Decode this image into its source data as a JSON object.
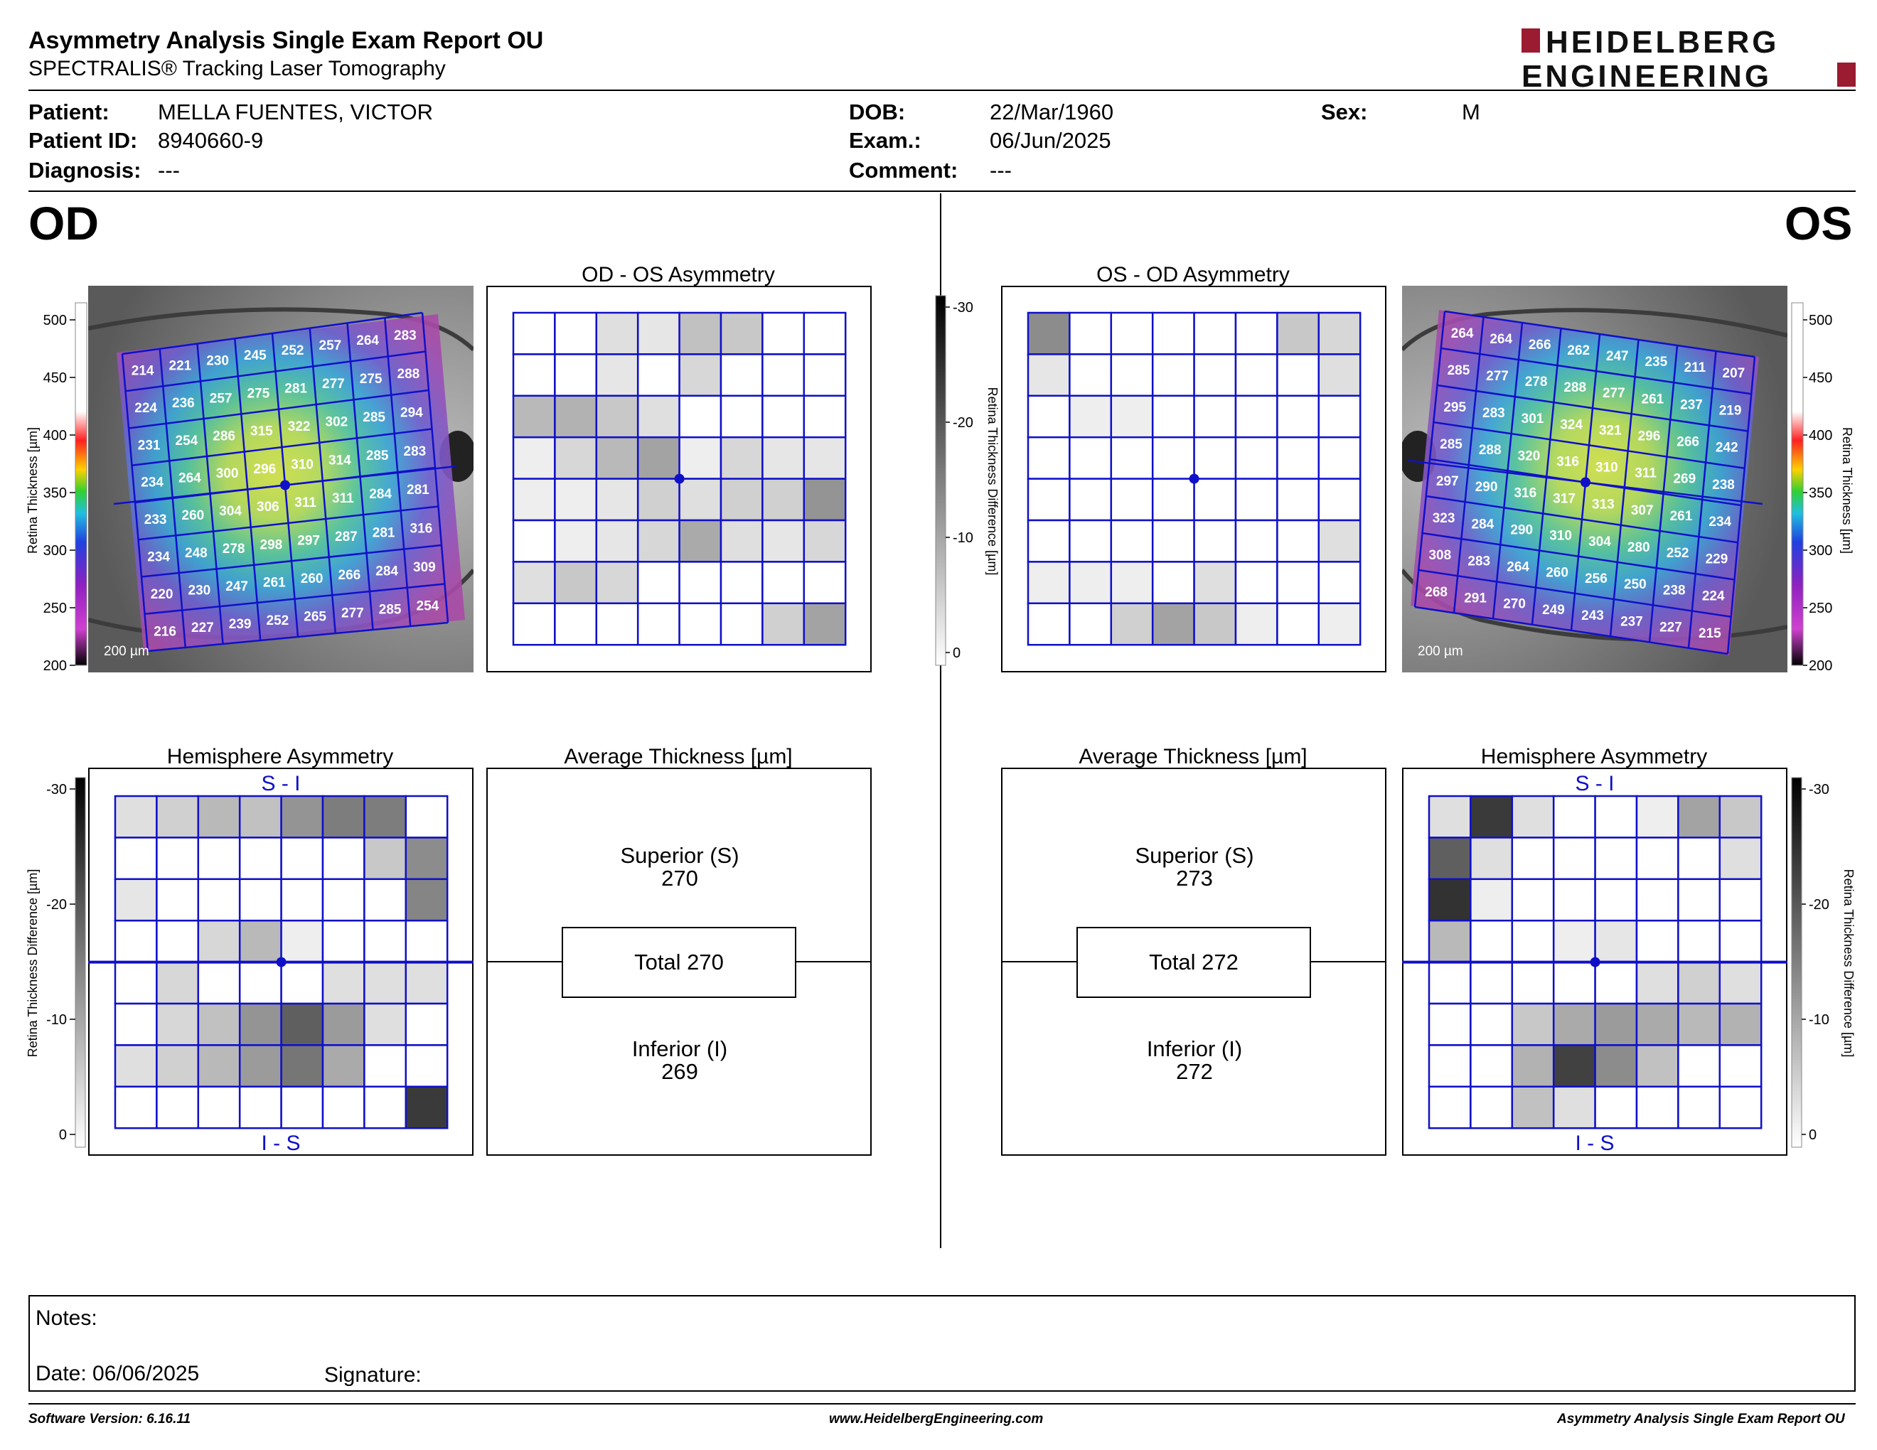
{
  "header": {
    "title": "Asymmetry Analysis Single Exam Report OU",
    "subtitle": "SPECTRALIS® Tracking Laser Tomography",
    "logo_line1": "HEIDELBERG",
    "logo_line2": "ENGINEERING"
  },
  "patient": {
    "patient_label": "Patient:",
    "patient_value": "MELLA FUENTES, VICTOR",
    "id_label": "Patient ID:",
    "id_value": "8940660-9",
    "diagnosis_label": "Diagnosis:",
    "diagnosis_value": "---",
    "dob_label": "DOB:",
    "dob_value": "22/Mar/1960",
    "exam_label": "Exam.:",
    "exam_value": "06/Jun/2025",
    "comment_label": "Comment:",
    "comment_value": "---",
    "sex_label": "Sex:",
    "sex_value": "M"
  },
  "od": {
    "eye_label": "OD",
    "map_scale": "200 µm",
    "thickness_grid": [
      [
        214,
        221,
        230,
        245,
        252,
        257,
        264,
        283
      ],
      [
        224,
        236,
        257,
        275,
        281,
        277,
        275,
        288
      ],
      [
        231,
        254,
        286,
        315,
        322,
        302,
        285,
        294
      ],
      [
        234,
        264,
        300,
        296,
        310,
        314,
        285,
        283
      ],
      [
        233,
        260,
        304,
        306,
        311,
        311,
        284,
        281
      ],
      [
        234,
        248,
        278,
        298,
        297,
        287,
        281,
        316
      ],
      [
        220,
        230,
        247,
        261,
        260,
        266,
        284,
        309
      ],
      [
        216,
        227,
        239,
        252,
        265,
        277,
        285,
        254
      ]
    ],
    "asym_title": "OD - OS Asymmetry",
    "asym_grid": [
      [
        0,
        0,
        3,
        2,
        7,
        6,
        0,
        0
      ],
      [
        0,
        0,
        2,
        0,
        4,
        0,
        0,
        0
      ],
      [
        8,
        9,
        6,
        3,
        0,
        0,
        0,
        0
      ],
      [
        1,
        4,
        8,
        11,
        1,
        4,
        2,
        2
      ],
      [
        1,
        1,
        2,
        5,
        3,
        5,
        5,
        13
      ],
      [
        0,
        1,
        2,
        4,
        10,
        3,
        2,
        4
      ],
      [
        3,
        6,
        4,
        0,
        0,
        0,
        0,
        0
      ],
      [
        0,
        0,
        0,
        0,
        0,
        0,
        5,
        11
      ]
    ],
    "hemi_title": "Hemisphere Asymmetry",
    "hemi_top_label": "S - I",
    "hemi_bottom_label": "I - S",
    "hemi_grid": [
      [
        3,
        5,
        8,
        7,
        13,
        16,
        16,
        0
      ],
      [
        0,
        0,
        0,
        0,
        0,
        0,
        6,
        14
      ],
      [
        2,
        0,
        0,
        0,
        0,
        0,
        0,
        15
      ],
      [
        0,
        0,
        4,
        8,
        1,
        0,
        0,
        0
      ],
      [
        0,
        4,
        0,
        0,
        0,
        3,
        3,
        3
      ],
      [
        0,
        4,
        7,
        13,
        20,
        12,
        3,
        0
      ],
      [
        3,
        5,
        8,
        12,
        17,
        10,
        0,
        0
      ],
      [
        0,
        0,
        0,
        0,
        0,
        0,
        0,
        25
      ]
    ],
    "avg_title": "Average Thickness [µm]",
    "superior_label": "Superior (S)",
    "superior_value": "270",
    "total_label": "Total 270",
    "inferior_label": "Inferior (I)",
    "inferior_value": "269"
  },
  "os": {
    "eye_label": "OS",
    "map_scale": "200 µm",
    "thickness_grid": [
      [
        264,
        264,
        266,
        262,
        247,
        235,
        211,
        207
      ],
      [
        285,
        277,
        278,
        288,
        277,
        261,
        237,
        219
      ],
      [
        295,
        283,
        301,
        324,
        321,
        296,
        266,
        242
      ],
      [
        285,
        288,
        320,
        316,
        310,
        311,
        269,
        238
      ],
      [
        297,
        290,
        316,
        317,
        313,
        307,
        261,
        234
      ],
      [
        323,
        284,
        290,
        310,
        304,
        280,
        252,
        229
      ],
      [
        308,
        283,
        264,
        260,
        256,
        250,
        238,
        224
      ],
      [
        268,
        291,
        270,
        249,
        243,
        237,
        227,
        215
      ]
    ],
    "asym_title": "OS - OD Asymmetry",
    "asym_grid": [
      [
        14,
        0,
        0,
        0,
        0,
        0,
        6,
        4
      ],
      [
        2,
        0,
        0,
        0,
        0,
        0,
        0,
        3
      ],
      [
        0,
        1,
        1,
        0,
        0,
        0,
        0,
        0
      ],
      [
        0,
        0,
        0,
        0,
        0,
        0,
        0,
        0
      ],
      [
        0,
        0,
        0,
        0,
        0,
        0,
        0,
        0
      ],
      [
        0,
        0,
        0,
        0,
        0,
        0,
        0,
        3
      ],
      [
        1,
        1,
        1,
        0,
        3,
        0,
        0,
        0
      ],
      [
        0,
        0,
        5,
        11,
        6,
        1,
        0,
        1
      ]
    ],
    "hemi_title": "Hemisphere Asymmetry",
    "hemi_top_label": "S - I",
    "hemi_bottom_label": "I - S",
    "hemi_grid": [
      [
        3,
        25,
        3,
        0,
        0,
        1,
        11,
        6
      ],
      [
        20,
        3,
        0,
        0,
        0,
        0,
        0,
        3
      ],
      [
        26,
        1,
        0,
        0,
        0,
        0,
        0,
        0
      ],
      [
        8,
        0,
        0,
        1,
        2,
        0,
        0,
        0
      ],
      [
        0,
        0,
        0,
        0,
        0,
        3,
        5,
        3
      ],
      [
        0,
        0,
        6,
        10,
        12,
        10,
        8,
        9
      ],
      [
        0,
        0,
        9,
        24,
        14,
        7,
        0,
        0
      ],
      [
        0,
        0,
        7,
        3,
        0,
        0,
        0,
        0
      ]
    ],
    "avg_title": "Average Thickness [µm]",
    "superior_label": "Superior (S)",
    "superior_value": "273",
    "total_label": "Total 272",
    "inferior_label": "Inferior (I)",
    "inferior_value": "272"
  },
  "scales": {
    "thickness_label": "Retina Thickness [µm]",
    "thickness_ticks": [
      "500",
      "450",
      "400",
      "350",
      "300",
      "250",
      "200"
    ],
    "diff_label": "Retina Thickness Difference [µm]",
    "diff_ticks": [
      "-30",
      "-20",
      "-10",
      "0"
    ]
  },
  "notes": {
    "notes_label": "Notes:",
    "date_label": "Date: 06/06/2025",
    "signature_label": "Signature:"
  },
  "footer": {
    "software": "Software Version: 6.16.11",
    "website": "www.HeidelbergEngineering.com",
    "report_name": "Asymmetry Analysis Single Exam Report OU"
  },
  "colors": {
    "grid_blue": "#1010c8",
    "logo_red": "#9b1b30",
    "frame": "#000000"
  }
}
